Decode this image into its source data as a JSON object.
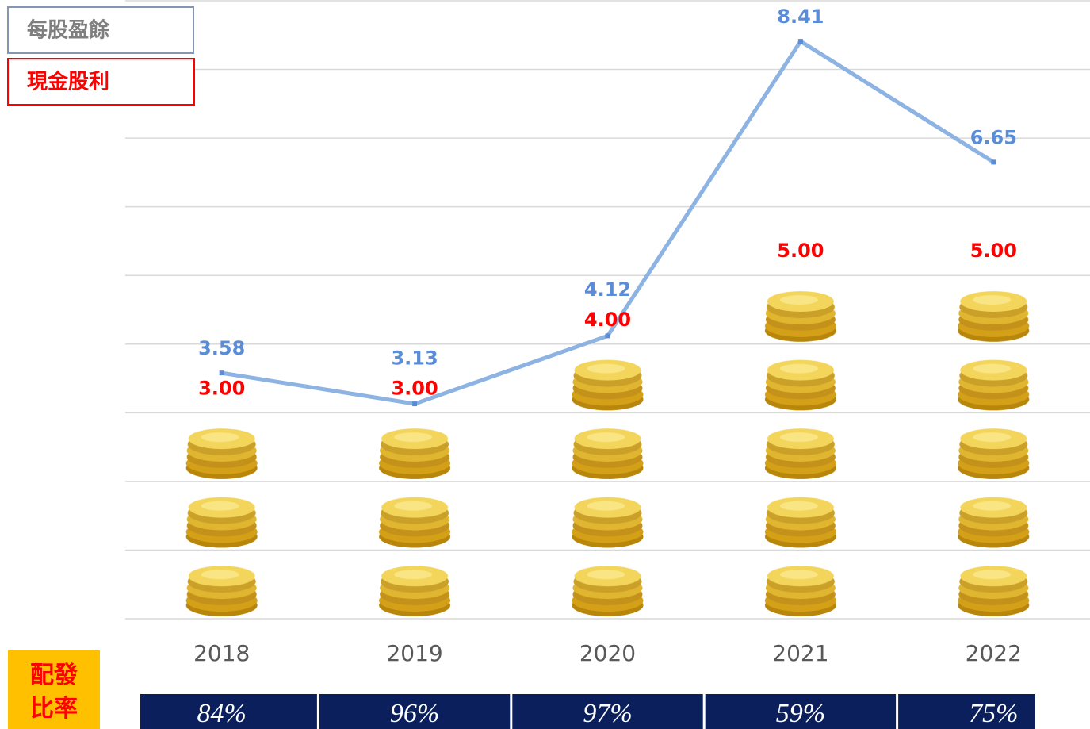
{
  "chart_data": {
    "type": "bar-line",
    "categories": [
      "2018",
      "2019",
      "2020",
      "2021",
      "2022"
    ],
    "series": [
      {
        "name": "現金股利",
        "type": "bar",
        "color": "#ff0000",
        "values": [
          3,
          3,
          4,
          5,
          5
        ],
        "value_labels": [
          "3.00",
          "3.00",
          "4.00",
          "5.00",
          "5.00"
        ]
      },
      {
        "name": "每股盈餘",
        "type": "line",
        "color": "#8db3e2",
        "label_color": "#5b8dd6",
        "values": [
          3.58,
          3.13,
          4.12,
          8.41,
          6.65
        ]
      }
    ],
    "ylim": [
      0,
      9
    ],
    "yticks": [
      0,
      1,
      2,
      3,
      4,
      5,
      6,
      7,
      8,
      9
    ],
    "grid": true,
    "payout": {
      "label": "配發比率",
      "values": [
        84,
        96,
        97,
        59,
        75
      ],
      "value_labels": [
        "84%",
        "96%",
        "97%",
        "59%",
        "75%"
      ]
    }
  }
}
